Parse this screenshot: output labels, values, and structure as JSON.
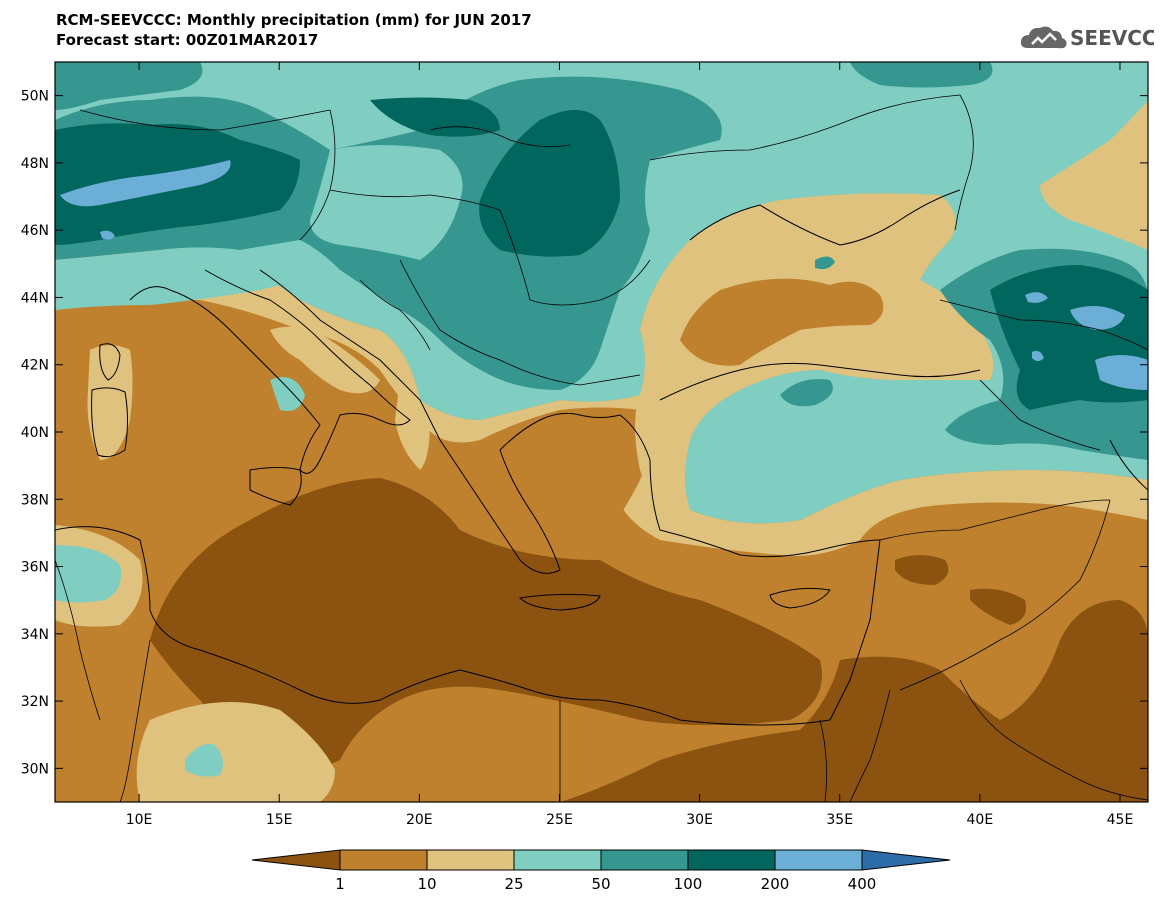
{
  "title": {
    "line1": "RCM-SEEVCCC: Monthly precipitation (mm) for JUN 2017",
    "line2": "Forecast start: 00Z01MAR2017"
  },
  "logo": {
    "text": "SEEVCCC"
  },
  "map": {
    "lon_range": [
      7,
      46
    ],
    "lat_range": [
      29,
      51
    ],
    "lat_ticks": [
      "30N",
      "32N",
      "34N",
      "36N",
      "38N",
      "40N",
      "42N",
      "44N",
      "46N",
      "48N",
      "50N"
    ],
    "lon_ticks": [
      "10E",
      "15E",
      "20E",
      "25E",
      "30E",
      "35E",
      "40E",
      "45E"
    ]
  },
  "colorbar": {
    "levels": [
      "1",
      "10",
      "25",
      "50",
      "100",
      "200",
      "400"
    ],
    "colors": {
      "below_1": "#8c5310",
      "c1_10": "#bf812d",
      "c10_25": "#dfc27d",
      "c25_50": "#80cdc1",
      "c50_100": "#35978f",
      "c100_200": "#01665e",
      "c200_400": "#6baed6",
      "above_400": "#2c6ca8"
    }
  },
  "chart_data": {
    "type": "heatmap",
    "title": "RCM-SEEVCCC: Monthly precipitation (mm) for JUN 2017",
    "subtitle": "Forecast start: 00Z01MAR2017",
    "units": "mm",
    "xlim": [
      7,
      46
    ],
    "ylim": [
      29,
      51
    ],
    "color_levels": [
      1,
      10,
      25,
      50,
      100,
      200,
      400
    ]
  }
}
